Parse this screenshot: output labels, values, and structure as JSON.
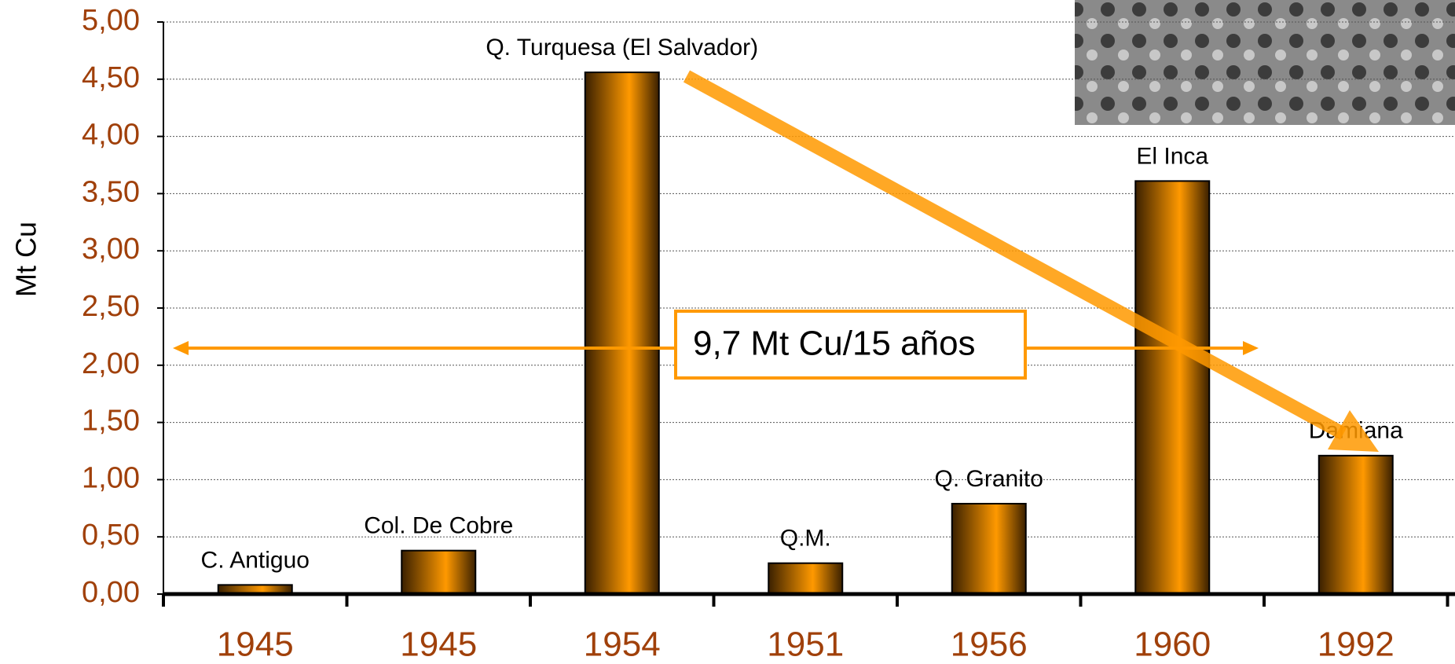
{
  "chart_data": {
    "type": "bar",
    "y_axis_label": "Mt Cu",
    "annotation": "9,7 Mt Cu/15 años",
    "categories": [
      "1945",
      "1945",
      "1954",
      "1951",
      "1956",
      "1960",
      "1992"
    ],
    "labels": [
      "C. Antiguo",
      "Col. De Cobre",
      "Q. Turquesa (El Salvador)",
      "Q.M.",
      "Q. Granito",
      "El Inca",
      "Damiana"
    ],
    "values": [
      0.08,
      0.38,
      4.56,
      0.27,
      0.79,
      3.61,
      1.21
    ],
    "color": "#ff9900",
    "ylim": [
      0,
      5
    ],
    "yticks": [
      {
        "value": 0,
        "label": "0,00"
      },
      {
        "value": 0.5,
        "label": "0,50"
      },
      {
        "value": 1,
        "label": "1,00"
      },
      {
        "value": 1.5,
        "label": "1,50"
      },
      {
        "value": 2,
        "label": "2,00"
      },
      {
        "value": 2.5,
        "label": "2,50"
      },
      {
        "value": 3,
        "label": "3,00"
      },
      {
        "value": 3.5,
        "label": "3,50"
      },
      {
        "value": 4,
        "label": "4,00"
      },
      {
        "value": 4.5,
        "label": "4,50"
      },
      {
        "value": 5,
        "label": "5,00"
      }
    ],
    "grid": true
  }
}
